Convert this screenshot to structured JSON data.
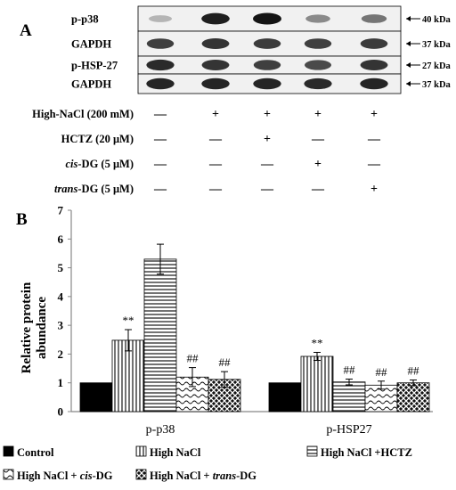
{
  "panel_a": {
    "letter": "A",
    "rows": [
      {
        "label": "p-p38",
        "kda": "40 kDa",
        "intensity": [
          0.25,
          0.95,
          1.0,
          0.45,
          0.55
        ]
      },
      {
        "label": "GAPDH",
        "kda": "37 kDa",
        "intensity": [
          0.8,
          0.85,
          0.82,
          0.8,
          0.82
        ]
      },
      {
        "label": "p-HSP-27",
        "kda": "27 kDa",
        "intensity": [
          0.9,
          0.85,
          0.8,
          0.75,
          0.85
        ]
      },
      {
        "label": "GAPDH",
        "kda": "37 kDa",
        "intensity": [
          0.92,
          0.92,
          0.92,
          0.9,
          0.92
        ]
      }
    ],
    "conditions": [
      {
        "name": "High-NaCl (200 mM)",
        "signs": [
          "—",
          "+",
          "+",
          "+",
          "+"
        ]
      },
      {
        "name": "HCTZ (20 μM)",
        "signs": [
          "—",
          "—",
          "+",
          "—",
          "—"
        ]
      },
      {
        "name_prefix": "",
        "name_italic": "cis",
        "name_suffix": "-DG (5 μM)",
        "signs": [
          "—",
          "—",
          "—",
          "+",
          "—"
        ]
      },
      {
        "name_prefix": "",
        "name_italic": "trans",
        "name_suffix": "-DG (5 μM)",
        "signs": [
          "—",
          "—",
          "—",
          "—",
          "+"
        ]
      }
    ]
  },
  "panel_b": {
    "letter": "B",
    "ylabel_line1": "Relative  protein",
    "ylabel_line2": "abundance",
    "legend": [
      {
        "key": "control",
        "text": "Control"
      },
      {
        "key": "nacl",
        "text": "High NaCl"
      },
      {
        "key": "hctz",
        "text": "High NaCl +HCTZ"
      },
      {
        "key": "cis",
        "prefix": "High NaCl + ",
        "italic": "cis",
        "suffix": "-DG"
      },
      {
        "key": "trans",
        "prefix": "High NaCl + ",
        "italic": "trans",
        "suffix": "-DG"
      }
    ]
  },
  "chart_data": {
    "type": "bar",
    "categories": [
      "p-p38",
      "p-HSP27"
    ],
    "series": [
      {
        "name": "Control",
        "values": [
          1.0,
          1.0
        ],
        "errors": [
          0,
          0
        ],
        "annotations": [
          "",
          ""
        ]
      },
      {
        "name": "High NaCl",
        "values": [
          2.48,
          1.92
        ],
        "errors": [
          0.37,
          0.14
        ],
        "annotations": [
          "**",
          "**"
        ]
      },
      {
        "name": "High NaCl +HCTZ",
        "values": [
          5.3,
          1.03
        ],
        "errors": [
          0.52,
          0.1
        ],
        "annotations": [
          "",
          "##"
        ]
      },
      {
        "name": "High NaCl + cis-DG",
        "values": [
          1.2,
          0.92
        ],
        "errors": [
          0.33,
          0.14
        ],
        "annotations": [
          "##",
          "##"
        ]
      },
      {
        "name": "High NaCl + trans-DG",
        "values": [
          1.12,
          1.0
        ],
        "errors": [
          0.27,
          0.1
        ],
        "annotations": [
          "##",
          "##"
        ]
      }
    ],
    "ylabel": "Relative  protein abundance",
    "xlabel": "",
    "ylim": [
      0,
      7
    ],
    "yticks": [
      0,
      1,
      2,
      3,
      4,
      5,
      6,
      7
    ],
    "grid": false,
    "legend_position": "bottom"
  }
}
